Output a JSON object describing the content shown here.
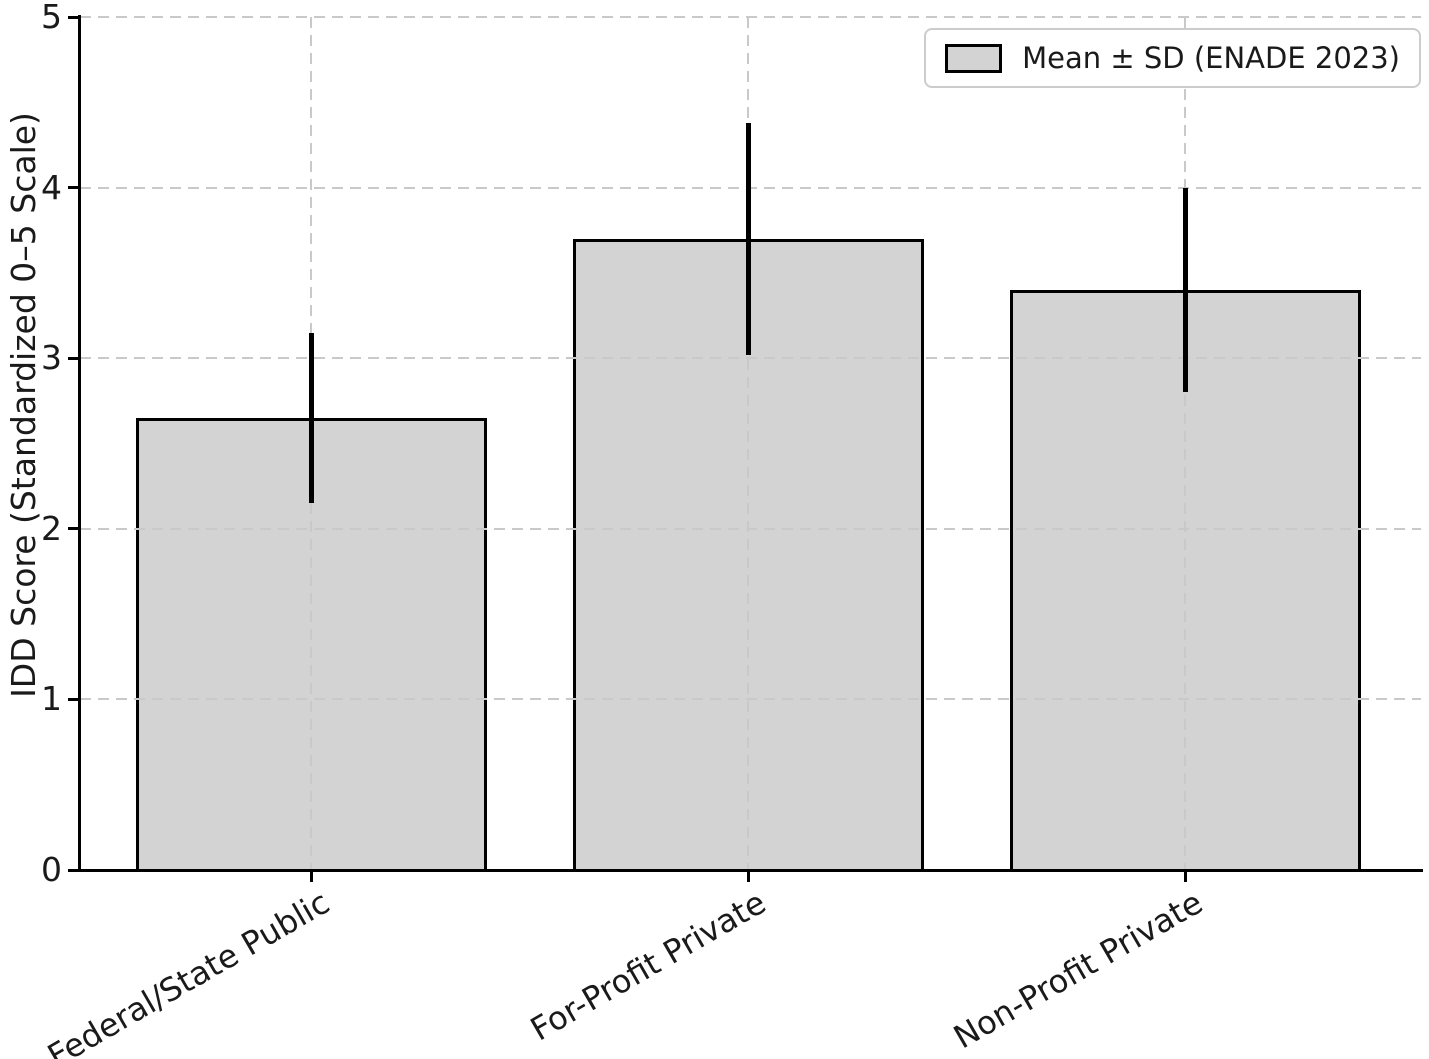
{
  "chart_data": {
    "type": "bar",
    "title": "",
    "xlabel": "",
    "ylabel": "IDD Score (Standardized 0–5 Scale)",
    "categories": [
      "Federal/State Public",
      "For-Profit Private",
      "Non-Profit Private"
    ],
    "values": [
      2.65,
      3.7,
      3.4
    ],
    "errors": [
      0.5,
      0.68,
      0.6
    ],
    "ylim": [
      0,
      5
    ],
    "yticks": [
      "0",
      "1",
      "2",
      "3",
      "4",
      "5"
    ],
    "grid": true,
    "grid_style": "dashed",
    "legend": {
      "label": "Mean ± SD (ENADE 2023)",
      "position": "upper right"
    },
    "colors": {
      "bar_fill": "#d3d3d3",
      "bar_edge": "#000000",
      "error_bar": "#000000",
      "gridline": "#c9c9c9",
      "axis": "#000000",
      "text": "#1a1a1a",
      "legend_border": "#cccccc",
      "background": "#ffffff"
    }
  }
}
